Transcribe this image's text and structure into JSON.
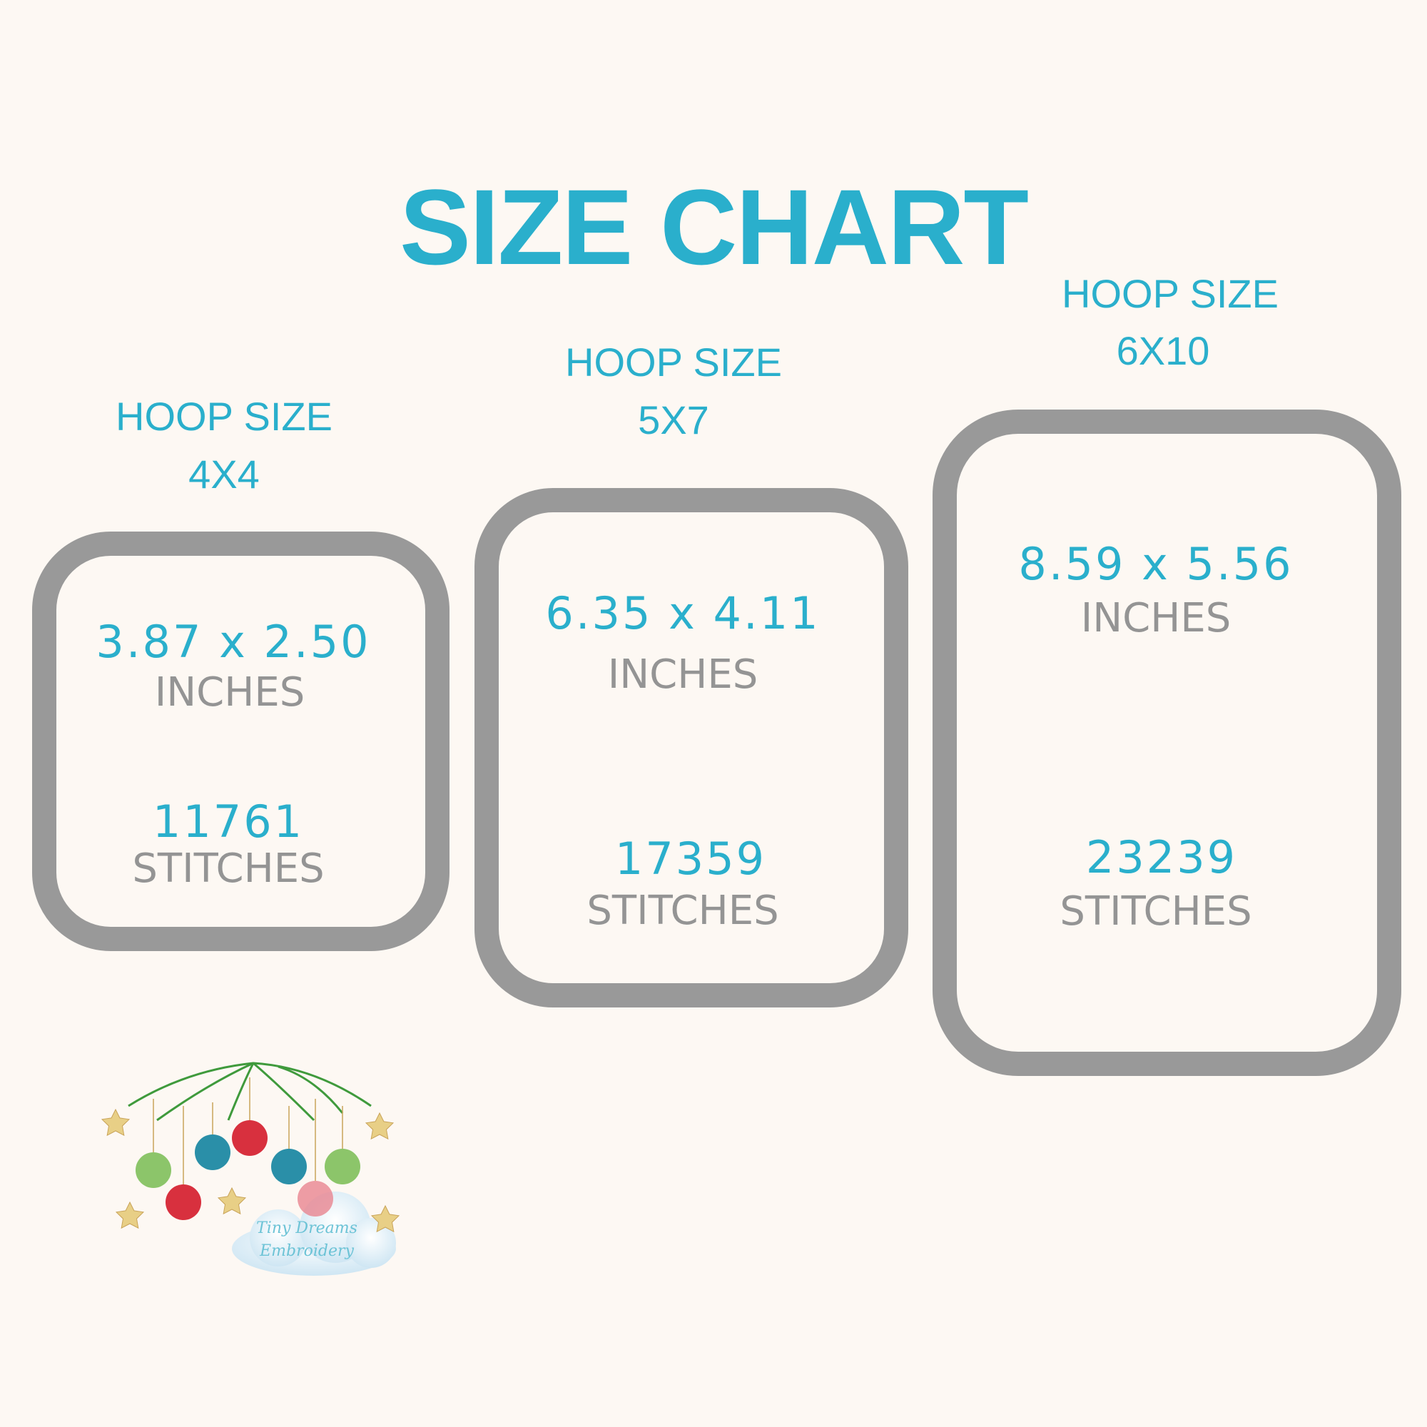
{
  "title": "SIZE CHART",
  "colors": {
    "background": "#fdf8f3",
    "accent_blue": "#2aafcc",
    "hoop_gray": "#999999",
    "text_gray": "#949494"
  },
  "hoops": [
    {
      "label": "HOOP SIZE",
      "size": "4X4",
      "dimensions": "3.87 x 2.50",
      "dim_unit": "INCHES",
      "stitches": "11761",
      "stitch_unit": "STITCHES"
    },
    {
      "label": "HOOP SIZE",
      "size": "5X7",
      "dimensions": "6.35 x 4.11",
      "dim_unit": "INCHES",
      "stitches": "17359",
      "stitch_unit": "STITCHES"
    },
    {
      "label": "HOOP SIZE",
      "size": "6X10",
      "dimensions": "8.59 x 5.56",
      "dim_unit": "INCHES",
      "stitches": "23239",
      "stitch_unit": "STITCHES"
    }
  ],
  "logo": {
    "text": "Tiny Dreams Embroidery",
    "icon": "christmas-ornaments-icon"
  }
}
